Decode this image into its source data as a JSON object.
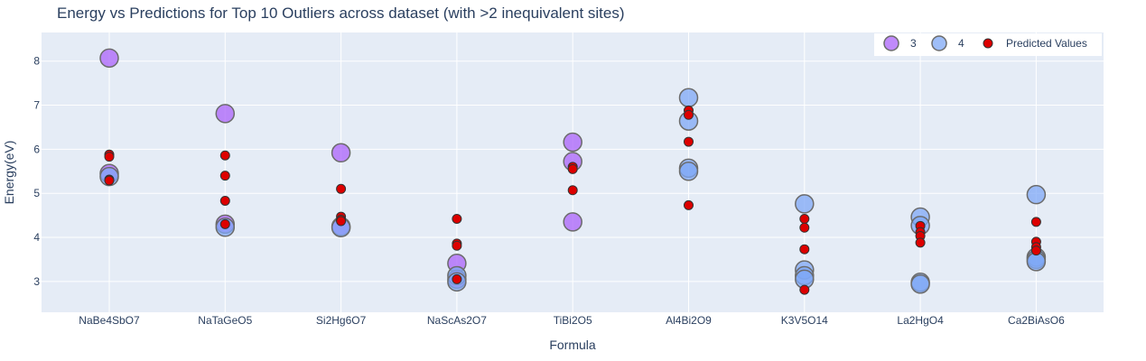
{
  "chart_data": {
    "type": "scatter",
    "title": "Energy vs Predictions for Top 10 Outliers across dataset (with >2 inequivalent sites)",
    "xlabel": "Formula",
    "ylabel": "Energy(eV)",
    "ylim": [
      2.3,
      8.65
    ],
    "yticks": [
      3,
      4,
      5,
      6,
      7,
      8
    ],
    "categories": [
      "NaBe4SbO7",
      "NaTaGeO5",
      "Si2Hg6O7",
      "NaScAs2O7",
      "TiBi2O5",
      "Al4Bi2O9",
      "K3V5O14",
      "La2HgO4",
      "Ca2BiAsO6"
    ],
    "grid": true,
    "legend_position": "top-right",
    "colors": {
      "background": "#E5ECF6",
      "grid": "#ffffff",
      "series_3": "#AB63FA",
      "series_4": "#636EFA",
      "series_4_fill": "#7FA8F5",
      "predicted": "#DD0000",
      "marker_border": "#6b6b6b"
    },
    "series": [
      {
        "name": "3",
        "points": [
          {
            "x": "NaBe4SbO7",
            "y": 8.07
          },
          {
            "x": "NaBe4SbO7",
            "y": 5.45
          },
          {
            "x": "NaTaGeO5",
            "y": 6.81
          },
          {
            "x": "NaTaGeO5",
            "y": 4.3
          },
          {
            "x": "Si2Hg6O7",
            "y": 5.92
          },
          {
            "x": "Si2Hg6O7",
            "y": 4.25
          },
          {
            "x": "NaScAs2O7",
            "y": 3.41
          },
          {
            "x": "NaScAs2O7",
            "y": 3.05
          },
          {
            "x": "TiBi2O5",
            "y": 6.16
          },
          {
            "x": "TiBi2O5",
            "y": 5.72
          },
          {
            "x": "TiBi2O5",
            "y": 4.35
          }
        ]
      },
      {
        "name": "4",
        "points": [
          {
            "x": "NaBe4SbO7",
            "y": 5.38
          },
          {
            "x": "NaTaGeO5",
            "y": 4.23
          },
          {
            "x": "Si2Hg6O7",
            "y": 4.22
          },
          {
            "x": "NaScAs2O7",
            "y": 3.13
          },
          {
            "x": "NaScAs2O7",
            "y": 2.99
          },
          {
            "x": "Al4Bi2O9",
            "y": 7.17
          },
          {
            "x": "Al4Bi2O9",
            "y": 6.64
          },
          {
            "x": "Al4Bi2O9",
            "y": 5.57
          },
          {
            "x": "Al4Bi2O9",
            "y": 5.5
          },
          {
            "x": "K3V5O14",
            "y": 4.76
          },
          {
            "x": "K3V5O14",
            "y": 3.26
          },
          {
            "x": "K3V5O14",
            "y": 3.13
          },
          {
            "x": "K3V5O14",
            "y": 3.05
          },
          {
            "x": "La2HgO4",
            "y": 4.46
          },
          {
            "x": "La2HgO4",
            "y": 4.27
          },
          {
            "x": "La2HgO4",
            "y": 2.98
          },
          {
            "x": "La2HgO4",
            "y": 2.94
          },
          {
            "x": "Ca2BiAsO6",
            "y": 4.97
          },
          {
            "x": "Ca2BiAsO6",
            "y": 3.55
          },
          {
            "x": "Ca2BiAsO6",
            "y": 3.5
          },
          {
            "x": "Ca2BiAsO6",
            "y": 3.45
          }
        ]
      },
      {
        "name": "Predicted Values",
        "points": [
          {
            "x": "NaBe4SbO7",
            "y": 5.88
          },
          {
            "x": "NaBe4SbO7",
            "y": 5.83
          },
          {
            "x": "NaBe4SbO7",
            "y": 5.31
          },
          {
            "x": "NaBe4SbO7",
            "y": 5.29
          },
          {
            "x": "NaTaGeO5",
            "y": 5.86
          },
          {
            "x": "NaTaGeO5",
            "y": 5.4
          },
          {
            "x": "NaTaGeO5",
            "y": 4.83
          },
          {
            "x": "NaTaGeO5",
            "y": 4.3
          },
          {
            "x": "Si2Hg6O7",
            "y": 5.1
          },
          {
            "x": "Si2Hg6O7",
            "y": 4.47
          },
          {
            "x": "Si2Hg6O7",
            "y": 4.4
          },
          {
            "x": "Si2Hg6O7",
            "y": 4.37
          },
          {
            "x": "NaScAs2O7",
            "y": 4.42
          },
          {
            "x": "NaScAs2O7",
            "y": 3.86
          },
          {
            "x": "NaScAs2O7",
            "y": 3.81
          },
          {
            "x": "NaScAs2O7",
            "y": 3.05
          },
          {
            "x": "TiBi2O5",
            "y": 5.6
          },
          {
            "x": "TiBi2O5",
            "y": 5.55
          },
          {
            "x": "TiBi2O5",
            "y": 5.07
          },
          {
            "x": "Al4Bi2O9",
            "y": 6.88
          },
          {
            "x": "Al4Bi2O9",
            "y": 6.78
          },
          {
            "x": "Al4Bi2O9",
            "y": 6.17
          },
          {
            "x": "Al4Bi2O9",
            "y": 4.73
          },
          {
            "x": "K3V5O14",
            "y": 4.42
          },
          {
            "x": "K3V5O14",
            "y": 4.22
          },
          {
            "x": "K3V5O14",
            "y": 3.73
          },
          {
            "x": "K3V5O14",
            "y": 2.81
          },
          {
            "x": "La2HgO4",
            "y": 4.26
          },
          {
            "x": "La2HgO4",
            "y": 4.12
          },
          {
            "x": "La2HgO4",
            "y": 4.03
          },
          {
            "x": "La2HgO4",
            "y": 3.88
          },
          {
            "x": "Ca2BiAsO6",
            "y": 4.35
          },
          {
            "x": "Ca2BiAsO6",
            "y": 3.9
          },
          {
            "x": "Ca2BiAsO6",
            "y": 3.78
          },
          {
            "x": "Ca2BiAsO6",
            "y": 3.7
          }
        ]
      }
    ],
    "legend": [
      "3",
      "4",
      "Predicted Values"
    ]
  }
}
